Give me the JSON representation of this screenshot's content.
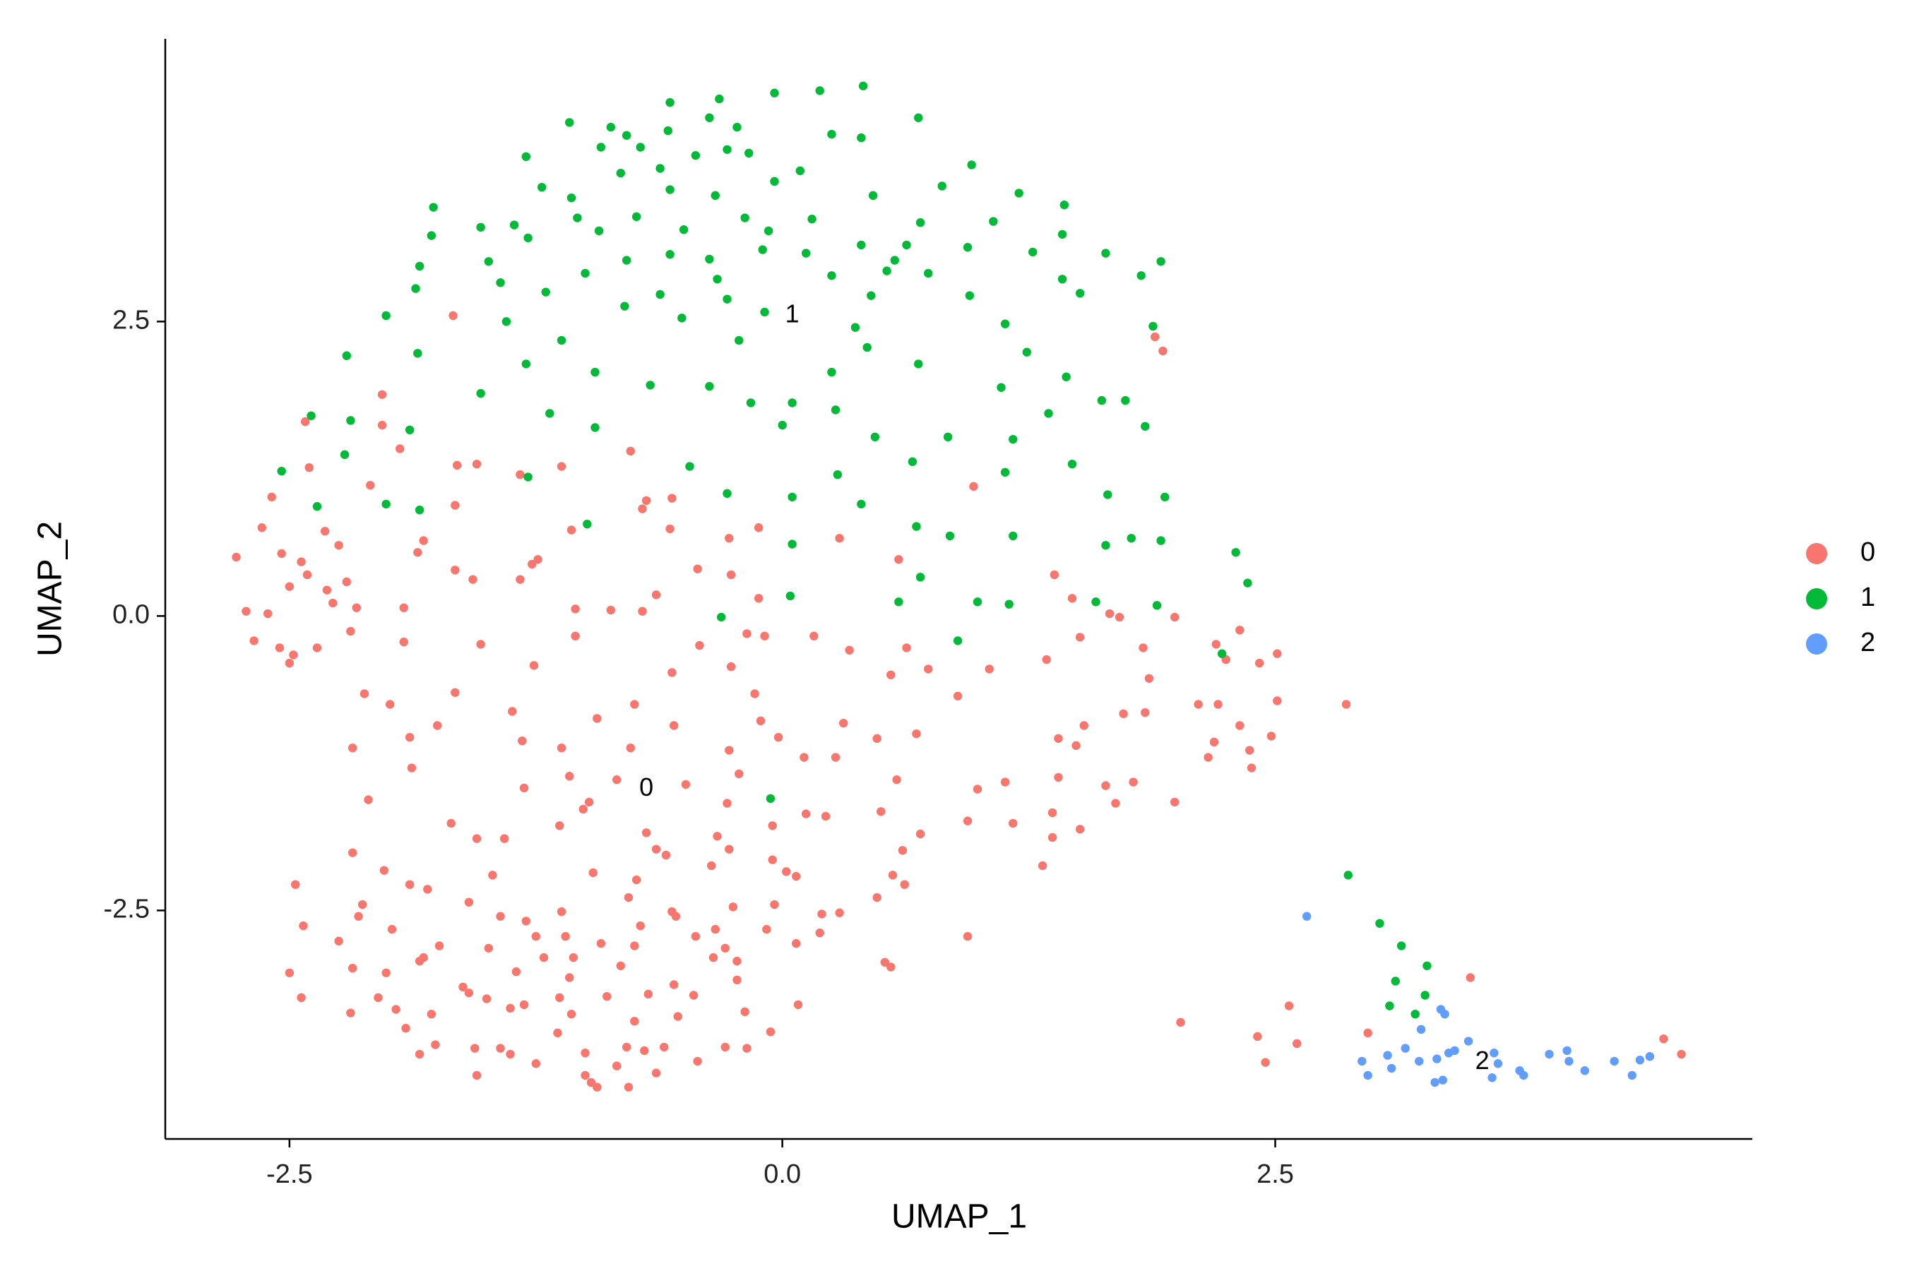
{
  "chart_data": {
    "type": "scatter",
    "xlabel": "UMAP_1",
    "ylabel": "UMAP_2",
    "xlim": [
      -3.13,
      4.92
    ],
    "ylim": [
      -4.44,
      4.9
    ],
    "xticks": [
      -2.5,
      {
        "value": 0,
        "label": "0.0"
      },
      2.5
    ],
    "yticks": [
      -2.5,
      {
        "value": 0,
        "label": "0.0"
      },
      2.5
    ],
    "grid": false,
    "legend": "right",
    "series": [
      {
        "name": "0",
        "color": "#F8766D",
        "x": [
          -2.77,
          -1.67,
          1.89,
          1.93,
          -2.03,
          -2.42,
          -2.03,
          -1.94,
          -0.77,
          -1.65,
          -1.55,
          -2.4,
          -1.33,
          -1.12,
          -2.09,
          -2.59,
          -1.66,
          -0.69,
          -0.56,
          0.97,
          -0.71,
          -2.32,
          -2.64,
          -2.25,
          -1.82,
          -1.07,
          -0.57,
          -0.27,
          -0.12,
          0.29,
          -2.54,
          -2.44,
          -1.85,
          -1.24,
          -1.27,
          -0.43,
          0.59,
          1.38,
          -2.41,
          -1.66,
          -1.57,
          -1.33,
          -0.26,
          -2.5,
          -2.31,
          -2.21,
          -1.92,
          -2.28,
          -2.16,
          -2.72,
          -2.61,
          -1.05,
          -0.87,
          -0.71,
          -0.64,
          -0.12,
          1.47,
          1.66,
          1.71,
          1.99,
          -2.19,
          -2.68,
          -2.55,
          -2.36,
          -1.92,
          -1.53,
          -1.05,
          -0.42,
          -0.18,
          -0.09,
          0.16,
          0.34,
          0.63,
          1.51,
          1.83,
          2.2,
          2.32,
          2.51,
          -2.48,
          -2.5,
          1.34,
          2.25,
          2.42,
          -1.26,
          -0.56,
          -0.26,
          0.55,
          0.74,
          1.05,
          1.86,
          -2.12,
          -1.66,
          -1.99,
          -0.75,
          -0.14,
          0.89,
          2.11,
          2.21,
          2.51,
          2.86,
          -1.37,
          1.84,
          1.73,
          -0.94,
          -0.55,
          -0.11,
          0.31,
          1.53,
          2.32,
          -1.75,
          -1.89,
          -1.32,
          -0.02,
          0.48,
          0.68,
          1.4,
          2.19,
          2.48,
          -2.18,
          -1.12,
          -0.77,
          -0.27,
          0.11,
          0.27,
          1.49,
          2.16,
          2.37,
          2.38,
          -1.88,
          -1.08,
          -0.22,
          -1.31,
          -0.84,
          -0.49,
          0.58,
          1.13,
          1.4,
          1.64,
          1.78,
          -2.1,
          -0.98,
          0.99,
          1.69,
          1.99,
          -1.01,
          -0.28,
          0.12,
          0.22,
          0.5,
          1.37,
          -1.13,
          0.94,
          1.17,
          -1.68,
          1.51,
          -0.69,
          -0.33,
          -0.05,
          0.7,
          -1.55,
          -1.41,
          1.37,
          -0.64,
          -0.27,
          -2.18,
          -0.59,
          0.61,
          -0.05,
          -0.36,
          1.32,
          -2.02,
          -1.47,
          -0.96,
          0.02,
          0.07,
          0.56,
          -2.47,
          -0.74,
          -1.89,
          -1.8,
          0.62,
          -2.13,
          -1.59,
          -0.78,
          -0.04,
          0.48,
          -1.12,
          -0.56,
          -0.25,
          0.2,
          0.29,
          -2.15,
          -1.43,
          -0.54,
          -1.3,
          -2.43,
          -1.98,
          -0.72,
          -0.34,
          -0.08,
          -1.25,
          -1.1,
          -0.44,
          0.19,
          0.94,
          -2.25,
          -0.92,
          0.07,
          -1.74,
          -1.49,
          -0.75,
          -0.29,
          -1.82,
          -1.21,
          -1.06,
          -0.35,
          -1.84,
          -0.23,
          0.52,
          0.55,
          -0.82,
          -2.5,
          -2.18,
          -2.01,
          -1.35,
          -1.08,
          -0.23,
          3.49,
          -1.62,
          -0.55,
          -1.59,
          -2.44,
          -2.05,
          -1.5,
          -1.13,
          -0.89,
          -0.68,
          -0.45,
          -1.38,
          -1.96,
          -2.19,
          -1.31,
          -1.78,
          -1.07,
          -0.19,
          0.08,
          2.57,
          -0.53,
          -0.75,
          2.02,
          -1.91,
          -1.14,
          -0.06,
          2.41,
          2.97,
          4.47,
          -1.76,
          -1.56,
          -1.43,
          -0.79,
          -0.6,
          -0.29,
          -0.18,
          2.61,
          -1.84,
          -1.38,
          -1.0,
          -0.7,
          -0.43,
          -1.25,
          4.56,
          2.45,
          -0.84,
          -1.55,
          -1.0,
          -0.64,
          -0.97,
          -0.94,
          -0.78
        ],
        "values": [
          0.5,
          2.55,
          2.37,
          2.25,
          1.88,
          1.65,
          1.62,
          1.42,
          1.4,
          1.28,
          1.29,
          1.26,
          1.2,
          1.27,
          1.11,
          1.01,
          0.94,
          0.98,
          1.0,
          1.1,
          0.91,
          0.72,
          0.75,
          0.6,
          0.64,
          0.73,
          0.74,
          0.66,
          0.75,
          0.66,
          0.53,
          0.46,
          0.54,
          0.48,
          0.44,
          0.4,
          0.48,
          0.35,
          0.35,
          0.39,
          0.31,
          0.31,
          0.35,
          0.25,
          0.22,
          0.29,
          0.07,
          0.11,
          0.07,
          0.04,
          0.02,
          0.06,
          0.05,
          0.04,
          0.18,
          0.15,
          0.15,
          0.02,
          -0.01,
          -0.01,
          -0.13,
          -0.21,
          -0.27,
          -0.27,
          -0.22,
          -0.24,
          -0.17,
          -0.25,
          -0.15,
          -0.17,
          -0.17,
          -0.29,
          -0.27,
          -0.18,
          -0.27,
          -0.24,
          -0.12,
          -0.32,
          -0.33,
          -0.4,
          -0.37,
          -0.37,
          -0.4,
          -0.42,
          -0.48,
          -0.43,
          -0.5,
          -0.45,
          -0.45,
          -0.53,
          -0.66,
          -0.65,
          -0.75,
          -0.75,
          -0.66,
          -0.68,
          -0.75,
          -0.75,
          -0.72,
          -0.75,
          -0.81,
          -0.82,
          -0.83,
          -0.87,
          -0.93,
          -0.89,
          -0.91,
          -0.93,
          -0.93,
          -0.93,
          -1.03,
          -1.06,
          -1.03,
          -1.04,
          -1.0,
          -1.04,
          -1.07,
          -1.02,
          -1.12,
          -1.12,
          -1.12,
          -1.14,
          -1.2,
          -1.2,
          -1.1,
          -1.2,
          -1.14,
          -1.29,
          -1.29,
          -1.36,
          -1.34,
          -1.46,
          -1.39,
          -1.43,
          -1.39,
          -1.41,
          -1.37,
          -1.44,
          -1.41,
          -1.56,
          -1.58,
          -1.47,
          -1.59,
          -1.58,
          -1.64,
          -1.59,
          -1.68,
          -1.7,
          -1.66,
          -1.67,
          -1.78,
          -1.74,
          -1.76,
          -1.76,
          -1.81,
          -1.84,
          -1.87,
          -1.78,
          -1.85,
          -1.89,
          -1.89,
          -1.88,
          -1.98,
          -1.98,
          -2.01,
          -2.03,
          -1.99,
          -2.07,
          -2.12,
          -2.12,
          -2.16,
          -2.2,
          -2.18,
          -2.17,
          -2.21,
          -2.2,
          -2.28,
          -2.24,
          -2.28,
          -2.32,
          -2.28,
          -2.45,
          -2.43,
          -2.39,
          -2.45,
          -2.39,
          -2.51,
          -2.51,
          -2.47,
          -2.53,
          -2.52,
          -2.55,
          -2.55,
          -2.55,
          -2.59,
          -2.63,
          -2.66,
          -2.63,
          -2.66,
          -2.66,
          -2.72,
          -2.72,
          -2.72,
          -2.69,
          -2.72,
          -2.76,
          -2.78,
          -2.78,
          -2.8,
          -2.82,
          -2.8,
          -2.82,
          -2.9,
          -2.9,
          -2.9,
          -2.9,
          -2.93,
          -2.93,
          -2.94,
          -2.98,
          -2.97,
          -3.03,
          -2.99,
          -3.03,
          -3.02,
          -3.07,
          -3.09,
          -3.07,
          -3.15,
          -3.13,
          -3.2,
          -3.24,
          -3.24,
          -3.25,
          -3.24,
          -3.23,
          -3.21,
          -3.22,
          -3.33,
          -3.34,
          -3.37,
          -3.3,
          -3.38,
          -3.38,
          -3.36,
          -3.3,
          -3.31,
          -3.4,
          -3.44,
          -3.45,
          -3.5,
          -3.54,
          -3.53,
          -3.57,
          -3.54,
          -3.59,
          -3.64,
          -3.67,
          -3.67,
          -3.66,
          -3.66,
          -3.66,
          -3.67,
          -3.63,
          -3.72,
          -3.72,
          -3.71,
          -3.69,
          -3.78,
          -3.8,
          -3.72,
          -3.79,
          -3.82,
          -3.9,
          -3.9,
          -3.88,
          -3.96,
          -4.0,
          -4.0
        ]
      },
      {
        "name": "1",
        "color": "#00BA38",
        "x": [
          0.41,
          0.19,
          -0.04,
          -0.32,
          -0.57,
          0.69,
          -1.08,
          -0.87,
          -0.23,
          -0.37,
          -0.58,
          -0.79,
          0.25,
          -0.92,
          -0.72,
          -0.44,
          -1.3,
          -0.28,
          -0.17,
          0.4,
          0.96,
          0.09,
          -0.04,
          -0.62,
          -1.22,
          -0.82,
          -0.57,
          -0.34,
          0.46,
          0.81,
          1.2,
          1.43,
          -1.77,
          -1.07,
          -1.53,
          -1.36,
          -1.04,
          -0.74,
          -0.5,
          -0.19,
          0.15,
          0.7,
          1.07,
          1.42,
          -1.78,
          -1.29,
          -0.93,
          -0.07,
          0.4,
          0.63,
          0.94,
          1.27,
          1.64,
          1.92,
          -1.49,
          -1.84,
          -0.79,
          -0.57,
          -0.37,
          -0.1,
          0.12,
          0.57,
          0.25,
          1.42,
          1.82,
          -1.43,
          -1.0,
          -0.33,
          0.53,
          0.74,
          -1.86,
          -1.2,
          -0.8,
          -0.62,
          -0.28,
          0.45,
          0.95,
          1.51,
          -2.01,
          -1.4,
          -0.51,
          -0.09,
          0.37,
          1.13,
          1.88,
          -2.21,
          -1.85,
          -1.12,
          -0.22,
          0.43,
          0.69,
          1.24,
          -1.3,
          -0.95,
          0.25,
          1.44,
          -0.67,
          -0.37,
          1.11,
          -1.53,
          -0.16,
          0.05,
          1.62,
          1.74,
          -2.39,
          -2.19,
          -1.18,
          0.27,
          1.35,
          -1.89,
          -0.95,
          0.0,
          0.47,
          0.84,
          1.17,
          1.84,
          -2.54,
          -2.22,
          -0.47,
          0.28,
          0.66,
          1.13,
          1.47,
          -1.29,
          -2.01,
          -0.28,
          0.05,
          0.4,
          1.65,
          1.94,
          -2.36,
          -1.84,
          -0.99,
          0.68,
          0.85,
          1.17,
          1.77,
          1.92,
          0.05,
          1.64,
          2.3,
          0.7,
          2.36,
          0.04,
          0.59,
          0.99,
          1.15,
          1.59,
          1.9,
          -0.31,
          0.89,
          2.23,
          -0.06,
          2.87,
          3.03,
          3.14,
          3.27,
          3.11,
          3.26,
          3.08,
          3.21
        ],
        "values": [
          4.5,
          4.46,
          4.44,
          4.39,
          4.36,
          4.23,
          4.19,
          4.15,
          4.15,
          4.23,
          4.12,
          4.08,
          4.09,
          3.98,
          3.98,
          3.91,
          3.9,
          3.96,
          3.93,
          4.06,
          3.83,
          3.78,
          3.69,
          3.8,
          3.64,
          3.76,
          3.62,
          3.57,
          3.57,
          3.65,
          3.59,
          3.49,
          3.47,
          3.55,
          3.3,
          3.32,
          3.38,
          3.39,
          3.28,
          3.38,
          3.37,
          3.34,
          3.35,
          3.24,
          3.23,
          3.21,
          3.27,
          3.27,
          3.15,
          3.15,
          3.13,
          3.09,
          3.08,
          3.01,
          3.01,
          2.97,
          3.02,
          3.07,
          3.03,
          3.11,
          3.08,
          3.02,
          2.89,
          2.86,
          2.89,
          2.83,
          2.91,
          2.86,
          2.93,
          2.91,
          2.78,
          2.75,
          2.63,
          2.73,
          2.69,
          2.72,
          2.72,
          2.74,
          2.55,
          2.5,
          2.53,
          2.58,
          2.45,
          2.48,
          2.46,
          2.21,
          2.23,
          2.34,
          2.34,
          2.28,
          2.14,
          2.24,
          2.14,
          2.07,
          2.07,
          2.03,
          1.96,
          1.95,
          1.94,
          1.89,
          1.81,
          1.81,
          1.83,
          1.83,
          1.7,
          1.66,
          1.72,
          1.75,
          1.72,
          1.58,
          1.6,
          1.62,
          1.52,
          1.52,
          1.5,
          1.61,
          1.23,
          1.37,
          1.27,
          1.2,
          1.31,
          1.22,
          1.29,
          1.18,
          0.95,
          1.04,
          1.01,
          0.95,
          1.03,
          1.01,
          0.93,
          0.9,
          0.78,
          0.76,
          0.68,
          0.68,
          0.66,
          0.64,
          0.61,
          0.6,
          0.54,
          0.33,
          0.28,
          0.17,
          0.12,
          0.12,
          0.1,
          0.12,
          0.09,
          -0.01,
          -0.21,
          -0.32,
          -1.55,
          -2.2,
          -2.61,
          -2.8,
          -2.97,
          -3.1,
          -3.22,
          -3.31,
          -3.38
        ]
      },
      {
        "name": "2",
        "color": "#619CFF",
        "x": [
          2.66,
          3.34,
          3.36,
          3.24,
          3.16,
          3.07,
          2.94,
          2.97,
          3.09,
          3.23,
          3.32,
          3.38,
          3.41,
          3.48,
          3.61,
          3.63,
          3.6,
          3.74,
          3.76,
          3.31,
          3.35,
          3.89,
          3.99,
          3.98,
          4.07,
          4.22,
          4.31,
          4.35,
          4.4
        ],
        "values": [
          -2.55,
          -3.34,
          -3.38,
          -3.51,
          -3.67,
          -3.73,
          -3.78,
          -3.9,
          -3.84,
          -3.78,
          -3.76,
          -3.71,
          -3.69,
          -3.61,
          -3.71,
          -3.8,
          -3.92,
          -3.86,
          -3.9,
          -3.96,
          -3.94,
          -3.72,
          -3.78,
          -3.69,
          -3.86,
          -3.78,
          -3.9,
          -3.77,
          -3.74
        ]
      }
    ],
    "annotations": [
      {
        "text": "1",
        "x": 0.05,
        "y": 2.55
      },
      {
        "text": "0",
        "x": -0.69,
        "y": -1.47
      },
      {
        "text": "2",
        "x": 3.55,
        "y": -3.79
      }
    ]
  }
}
